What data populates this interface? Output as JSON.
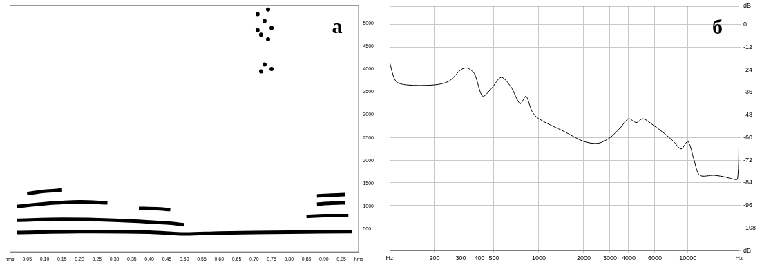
{
  "chart_data": [
    {
      "type": "line",
      "title": "а",
      "grid": false,
      "xlim": [
        0,
        1
      ],
      "xticks": [
        {
          "value": 0,
          "label": "hms"
        },
        0.05,
        {
          "value": 0.1,
          "label": "0.10"
        },
        0.15,
        {
          "value": 0.2,
          "label": "0.20"
        },
        0.25,
        {
          "value": 0.3,
          "label": "0.30"
        },
        0.35,
        {
          "value": 0.4,
          "label": "0.40"
        },
        0.45,
        {
          "value": 0.5,
          "label": "0.50"
        },
        0.55,
        {
          "value": 0.6,
          "label": "0.60"
        },
        0.65,
        {
          "value": 0.7,
          "label": "0.70"
        },
        0.75,
        {
          "value": 0.8,
          "label": "0.80"
        },
        0.85,
        {
          "value": 0.9,
          "label": "0.90"
        },
        0.95,
        {
          "value": 1,
          "label": "hms"
        }
      ],
      "ylim": [
        0,
        5400
      ],
      "yticks": [
        500,
        1000,
        1500,
        2000,
        2500,
        3000,
        3500,
        4000,
        4500,
        5000
      ],
      "series": [
        {
          "color": "#000000",
          "x": [
            0.05,
            0.1,
            0.15
          ],
          "values": [
            1280,
            1330,
            1360
          ]
        },
        {
          "color": "#000000",
          "x": [
            0.02,
            0.1,
            0.2,
            0.28
          ],
          "values": [
            1000,
            1060,
            1100,
            1080
          ]
        },
        {
          "color": "#000000",
          "x": [
            0.37,
            0.42,
            0.46
          ],
          "values": [
            960,
            950,
            930
          ]
        },
        {
          "color": "#000000",
          "x": [
            0.02,
            0.15,
            0.3,
            0.45,
            0.5
          ],
          "values": [
            700,
            720,
            700,
            640,
            600
          ]
        },
        {
          "color": "#000000",
          "x": [
            0.02,
            0.2,
            0.4,
            0.5,
            0.6,
            0.8,
            0.98
          ],
          "values": [
            430,
            450,
            440,
            400,
            420,
            440,
            450
          ]
        },
        {
          "color": "#000000",
          "x": [
            0.88,
            0.92,
            0.96
          ],
          "values": [
            1230,
            1250,
            1260
          ]
        },
        {
          "color": "#000000",
          "x": [
            0.88,
            0.92,
            0.96
          ],
          "values": [
            1050,
            1070,
            1080
          ]
        },
        {
          "color": "#000000",
          "x": [
            0.85,
            0.9,
            0.97
          ],
          "values": [
            780,
            800,
            800
          ]
        },
        {
          "type": "scatter",
          "marker": "circle",
          "color": "#000000",
          "x": [
            0.71,
            0.73,
            0.75,
            0.72,
            0.74,
            0.73,
            0.75,
            0.72,
            0.74,
            0.71
          ],
          "values": [
            5200,
            5050,
            4900,
            4750,
            4650,
            4100,
            4000,
            3950,
            5300,
            4850
          ]
        }
      ]
    },
    {
      "type": "line",
      "title": "б",
      "log": "x",
      "grid": true,
      "xlim": [
        100,
        22050
      ],
      "xticks": [
        {
          "value": 100,
          "label": "Hz"
        },
        200,
        300,
        400,
        500,
        1000,
        2000,
        3000,
        4000,
        6000,
        10000,
        {
          "value": 22050,
          "label": "Hz"
        }
      ],
      "ylim": [
        -120,
        10
      ],
      "yticks": [
        {
          "value": 10,
          "label": "dB"
        },
        0,
        -12,
        -24,
        -36,
        -48,
        -60,
        -72,
        -84,
        -96,
        -108,
        {
          "value": -120,
          "label": "dB"
        }
      ],
      "x": [
        100,
        110,
        130,
        200,
        250,
        300,
        330,
        370,
        420,
        480,
        560,
        650,
        750,
        820,
        900,
        1000,
        1500,
        2000,
        2500,
        3000,
        3500,
        4000,
        4500,
        5000,
        6000,
        7000,
        8000,
        9000,
        10000,
        11000,
        12000,
        15000,
        18000,
        20000,
        21500,
        22000
      ],
      "series": [
        {
          "color": "#000000",
          "values": [
            -20,
            -30,
            -32,
            -32,
            -30,
            -24,
            -23,
            -26,
            -38,
            -34,
            -28,
            -33,
            -42,
            -38,
            -46,
            -50,
            -57,
            -62,
            -63,
            -60,
            -55,
            -50,
            -52,
            -50,
            -54,
            -58,
            -62,
            -66,
            -62,
            -72,
            -80,
            -80,
            -81,
            -82,
            -82,
            -58
          ]
        }
      ]
    }
  ]
}
